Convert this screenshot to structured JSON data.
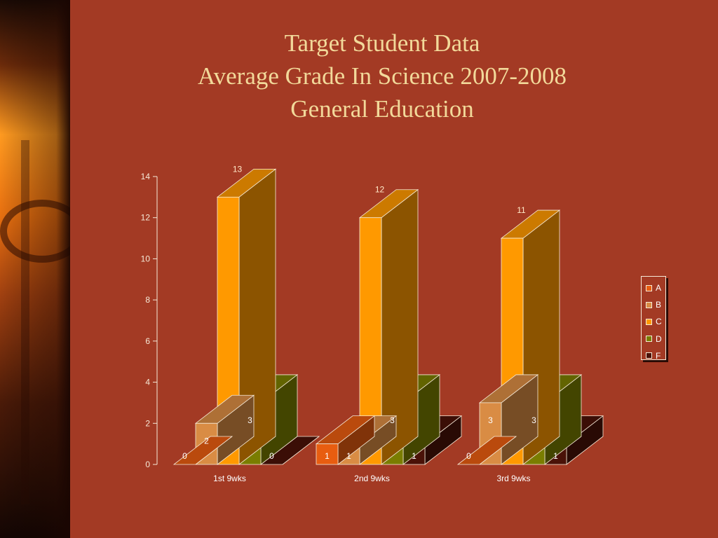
{
  "title_lines": [
    "Target Student Data",
    "Average Grade In Science 2007-2008",
    "General Education"
  ],
  "chart_data": {
    "type": "bar",
    "title": "Target Student Data / Average Grade In Science 2007-2008 / General Education",
    "categories": [
      "1st 9wks",
      "2nd 9wks",
      "3rd 9wks"
    ],
    "series": [
      {
        "name": "A",
        "values": [
          0,
          1,
          0
        ]
      },
      {
        "name": "B",
        "values": [
          2,
          1,
          3
        ]
      },
      {
        "name": "C",
        "values": [
          13,
          12,
          11
        ]
      },
      {
        "name": "D",
        "values": [
          3,
          3,
          3
        ]
      },
      {
        "name": "F",
        "values": [
          0,
          1,
          1
        ]
      }
    ],
    "ylim": [
      0,
      14
    ],
    "yticks": [
      0,
      2,
      4,
      6,
      8,
      10,
      12,
      14
    ],
    "legend": "right",
    "colors": {
      "A": "#e85d10",
      "B": "#d98c44",
      "C": "#ff9900",
      "D": "#7a7d00",
      "F": "#4a1208"
    }
  }
}
